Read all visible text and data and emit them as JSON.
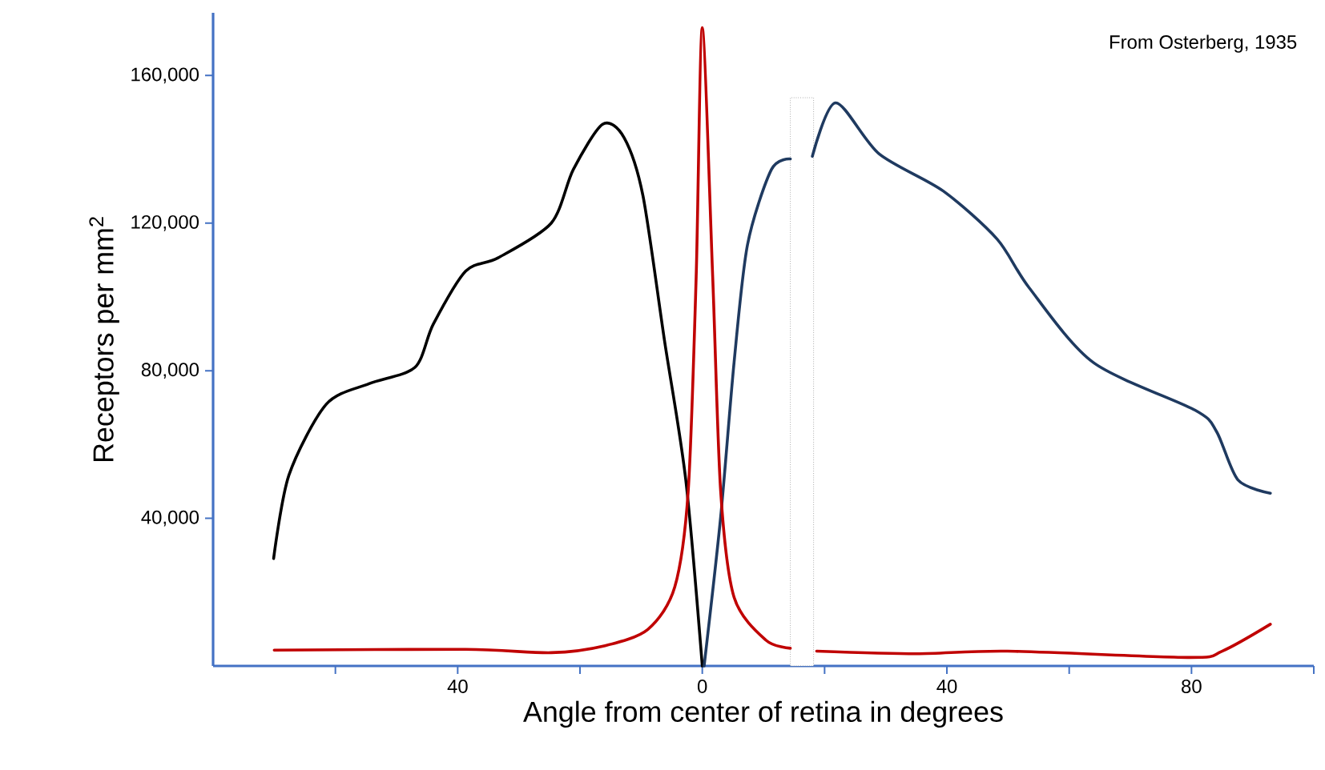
{
  "chart_data": {
    "type": "line",
    "xlabel": "Angle from center of retina in degrees",
    "ylabel": "Receptors per mm$^{2}$",
    "annotations": [
      "From Osterberg, 1935"
    ],
    "xlim": [
      -80,
      100
    ],
    "xticks": [
      {
        "value": -60,
        "label": null
      },
      {
        "value": -40,
        "label": "40"
      },
      {
        "value": -20,
        "label": null
      },
      0,
      {
        "value": 20,
        "label": null
      },
      40,
      {
        "value": 60,
        "label": null
      },
      80,
      {
        "value": 100,
        "label": null
      }
    ],
    "ylim": [
      0,
      177000
    ],
    "yticks": [
      {
        "value": 40000,
        "label": "40,000"
      },
      {
        "value": 80000,
        "label": "80,000"
      },
      {
        "value": 120000,
        "label": "120,000"
      },
      {
        "value": 160000,
        "label": "160,000"
      }
    ],
    "grid": false,
    "marker": "none",
    "line_style": "solid",
    "bands": [
      {
        "axis": "x",
        "from": 14.4,
        "to": 18.2,
        "color": "#ffffff"
      }
    ],
    "series": [
      {
        "color": "#000000",
        "x": [
          -70.1,
          -67.6,
          -61.5,
          -54.5,
          -47,
          -44,
          -38.7,
          -33.4,
          -24.7,
          -21.1,
          -16.3,
          -12.8,
          -9.7,
          -6.2,
          -2.7,
          0
        ],
        "values": [
          29100,
          51700,
          70900,
          76500,
          80900,
          92600,
          107000,
          110600,
          120000,
          134500,
          146800,
          143200,
          127400,
          88400,
          50400,
          0
        ]
      },
      {
        "color": "#1f3a60",
        "x": [
          0.3,
          3,
          5.2,
          7.4,
          11.3,
          14.4,
          16,
          18,
          21.8,
          28.9,
          39.4,
          48.2,
          53.4,
          63.9,
          80.6,
          84.1,
          87.6,
          92.9
        ],
        "values": [
          0,
          40300,
          82300,
          114200,
          134500,
          137400,
          null,
          138100,
          152600,
          138800,
          128700,
          115700,
          102600,
          82300,
          69300,
          63500,
          50400,
          46800
        ]
      },
      {
        "color": "#c00000",
        "x": [
          -70,
          -38.7,
          -24.7,
          -15.9,
          -8.9,
          -4.5,
          -2.3,
          -1,
          0,
          1.7,
          3,
          5.2,
          10.4,
          14.4,
          16,
          18.7,
          35,
          49.9,
          79.7,
          85,
          92.9
        ],
        "values": [
          4300,
          4500,
          3600,
          5500,
          9900,
          21400,
          47500,
          105500,
          173000,
          105500,
          47500,
          18600,
          7000,
          4800,
          null,
          4000,
          3300,
          4000,
          2300,
          4000,
          11300
        ]
      }
    ]
  }
}
